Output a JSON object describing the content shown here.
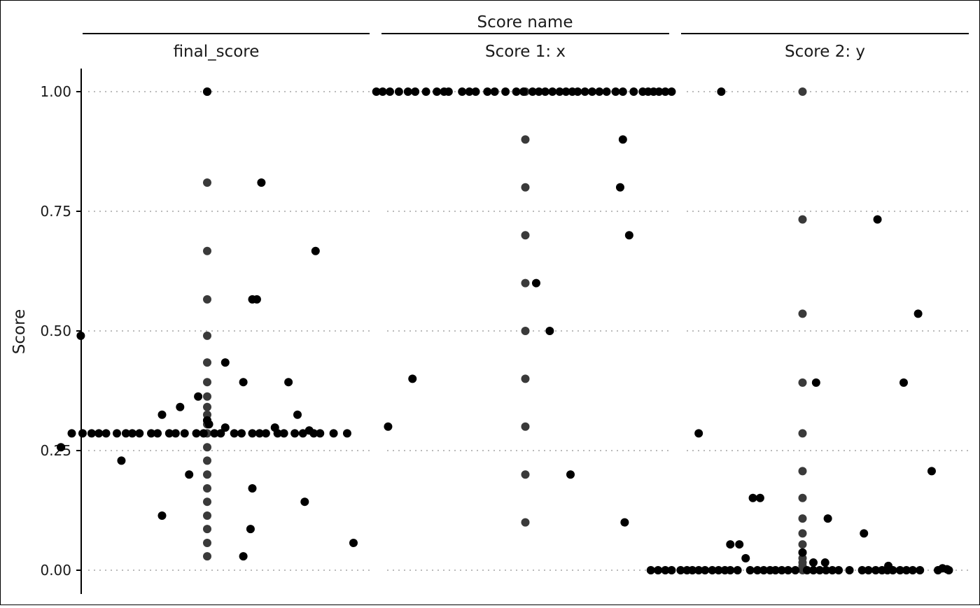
{
  "chart_data": {
    "type": "scatter",
    "title": "",
    "strip_title": "Score name",
    "ylabel": "Score",
    "xlabel": "",
    "ylim": [
      -0.045,
      1.05
    ],
    "y_ticks": [
      {
        "value": 0.0,
        "label": "0.00"
      },
      {
        "value": 0.25,
        "label": "0.25"
      },
      {
        "value": 0.5,
        "label": "0.50"
      },
      {
        "value": 0.75,
        "label": "0.75"
      },
      {
        "value": 1.0,
        "label": "1.00"
      }
    ],
    "grid": "horizontal dotted",
    "colors": {
      "points": "#000000",
      "center_points": "#3a3a3a",
      "grid": "#bbbbbb"
    },
    "facets": [
      {
        "name": "final_score",
        "center_values": [
          1.0,
          0.81,
          0.667,
          0.566,
          0.49,
          0.434,
          0.393,
          0.363,
          0.341,
          0.325,
          0.313,
          0.305,
          0.286,
          0.257,
          0.229,
          0.2,
          0.171,
          0.143,
          0.114,
          0.086,
          0.057,
          0.029
        ],
        "points": [
          {
            "x": 0.0,
            "y": 1.0
          },
          {
            "x": 0.06,
            "y": 0.81
          },
          {
            "x": 0.12,
            "y": 0.667
          },
          {
            "x": 0.05,
            "y": 0.566
          },
          {
            "x": 0.055,
            "y": 0.566
          },
          {
            "x": -0.14,
            "y": 0.49
          },
          {
            "x": 0.02,
            "y": 0.434
          },
          {
            "x": 0.04,
            "y": 0.393
          },
          {
            "x": 0.09,
            "y": 0.393
          },
          {
            "x": -0.01,
            "y": 0.363
          },
          {
            "x": -0.03,
            "y": 0.341
          },
          {
            "x": -0.05,
            "y": 0.325
          },
          {
            "x": 0.1,
            "y": 0.325
          },
          {
            "x": 0.0,
            "y": 0.313
          },
          {
            "x": 0.002,
            "y": 0.305
          },
          {
            "x": 0.02,
            "y": 0.298
          },
          {
            "x": 0.075,
            "y": 0.298
          },
          {
            "x": 0.113,
            "y": 0.292
          },
          {
            "x": -0.15,
            "y": 0.286
          },
          {
            "x": -0.138,
            "y": 0.286
          },
          {
            "x": -0.128,
            "y": 0.286
          },
          {
            "x": -0.12,
            "y": 0.286
          },
          {
            "x": -0.112,
            "y": 0.286
          },
          {
            "x": -0.1,
            "y": 0.286
          },
          {
            "x": -0.09,
            "y": 0.286
          },
          {
            "x": -0.083,
            "y": 0.286
          },
          {
            "x": -0.075,
            "y": 0.286
          },
          {
            "x": -0.062,
            "y": 0.286
          },
          {
            "x": -0.055,
            "y": 0.286
          },
          {
            "x": -0.042,
            "y": 0.286
          },
          {
            "x": -0.035,
            "y": 0.286
          },
          {
            "x": -0.025,
            "y": 0.286
          },
          {
            "x": -0.012,
            "y": 0.286
          },
          {
            "x": -0.004,
            "y": 0.286
          },
          {
            "x": 0.008,
            "y": 0.286
          },
          {
            "x": 0.015,
            "y": 0.286
          },
          {
            "x": 0.03,
            "y": 0.286
          },
          {
            "x": 0.038,
            "y": 0.286
          },
          {
            "x": 0.05,
            "y": 0.286
          },
          {
            "x": 0.058,
            "y": 0.286
          },
          {
            "x": 0.065,
            "y": 0.286
          },
          {
            "x": 0.078,
            "y": 0.286
          },
          {
            "x": 0.085,
            "y": 0.286
          },
          {
            "x": 0.097,
            "y": 0.286
          },
          {
            "x": 0.106,
            "y": 0.286
          },
          {
            "x": 0.118,
            "y": 0.286
          },
          {
            "x": 0.125,
            "y": 0.286
          },
          {
            "x": 0.14,
            "y": 0.286
          },
          {
            "x": 0.155,
            "y": 0.286
          },
          {
            "x": -0.162,
            "y": 0.257
          },
          {
            "x": -0.095,
            "y": 0.229
          },
          {
            "x": -0.02,
            "y": 0.2
          },
          {
            "x": 0.05,
            "y": 0.171
          },
          {
            "x": 0.108,
            "y": 0.143
          },
          {
            "x": -0.05,
            "y": 0.114
          },
          {
            "x": 0.048,
            "y": 0.086
          },
          {
            "x": 0.162,
            "y": 0.057
          },
          {
            "x": 0.04,
            "y": 0.029
          }
        ]
      },
      {
        "name": "Score 1: x",
        "center_values": [
          1.0,
          0.9,
          0.8,
          0.7,
          0.6,
          0.5,
          0.4,
          0.3,
          0.2,
          0.1
        ],
        "points": [
          {
            "x": -0.165,
            "y": 1.0
          },
          {
            "x": -0.158,
            "y": 1.0
          },
          {
            "x": -0.15,
            "y": 1.0
          },
          {
            "x": -0.14,
            "y": 1.0
          },
          {
            "x": -0.13,
            "y": 1.0
          },
          {
            "x": -0.122,
            "y": 1.0
          },
          {
            "x": -0.11,
            "y": 1.0
          },
          {
            "x": -0.098,
            "y": 1.0
          },
          {
            "x": -0.09,
            "y": 1.0
          },
          {
            "x": -0.085,
            "y": 1.0
          },
          {
            "x": -0.07,
            "y": 1.0
          },
          {
            "x": -0.062,
            "y": 1.0
          },
          {
            "x": -0.055,
            "y": 1.0
          },
          {
            "x": -0.042,
            "y": 1.0
          },
          {
            "x": -0.034,
            "y": 1.0
          },
          {
            "x": -0.022,
            "y": 1.0
          },
          {
            "x": -0.01,
            "y": 1.0
          },
          {
            "x": -0.002,
            "y": 1.0
          },
          {
            "x": 0.008,
            "y": 1.0
          },
          {
            "x": 0.015,
            "y": 1.0
          },
          {
            "x": 0.022,
            "y": 1.0
          },
          {
            "x": 0.03,
            "y": 1.0
          },
          {
            "x": 0.038,
            "y": 1.0
          },
          {
            "x": 0.045,
            "y": 1.0
          },
          {
            "x": 0.052,
            "y": 1.0
          },
          {
            "x": 0.058,
            "y": 1.0
          },
          {
            "x": 0.066,
            "y": 1.0
          },
          {
            "x": 0.074,
            "y": 1.0
          },
          {
            "x": 0.082,
            "y": 1.0
          },
          {
            "x": 0.09,
            "y": 1.0
          },
          {
            "x": 0.1,
            "y": 1.0
          },
          {
            "x": 0.108,
            "y": 1.0
          },
          {
            "x": 0.12,
            "y": 1.0
          },
          {
            "x": 0.13,
            "y": 1.0
          },
          {
            "x": 0.136,
            "y": 1.0
          },
          {
            "x": 0.142,
            "y": 1.0
          },
          {
            "x": 0.148,
            "y": 1.0
          },
          {
            "x": 0.155,
            "y": 1.0
          },
          {
            "x": 0.162,
            "y": 1.0
          },
          {
            "x": 0.108,
            "y": 0.9
          },
          {
            "x": 0.105,
            "y": 0.8
          },
          {
            "x": 0.115,
            "y": 0.7
          },
          {
            "x": 0.012,
            "y": 0.6
          },
          {
            "x": 0.027,
            "y": 0.5
          },
          {
            "x": -0.125,
            "y": 0.4
          },
          {
            "x": -0.152,
            "y": 0.3
          },
          {
            "x": 0.05,
            "y": 0.2
          },
          {
            "x": 0.11,
            "y": 0.1
          }
        ]
      },
      {
        "name": "Score 2: y",
        "center_values": [
          1.0,
          0.733,
          0.536,
          0.392,
          0.286,
          0.207,
          0.151,
          0.108,
          0.077,
          0.054,
          0.037,
          0.025,
          0.016,
          0.009,
          0.004,
          0.0
        ],
        "points": [
          {
            "x": -0.09,
            "y": 1.0
          },
          {
            "x": 0.083,
            "y": 0.733
          },
          {
            "x": 0.128,
            "y": 0.536
          },
          {
            "x": 0.015,
            "y": 0.392
          },
          {
            "x": 0.112,
            "y": 0.392
          },
          {
            "x": -0.115,
            "y": 0.286
          },
          {
            "x": 0.143,
            "y": 0.207
          },
          {
            "x": -0.055,
            "y": 0.151
          },
          {
            "x": -0.047,
            "y": 0.151
          },
          {
            "x": 0.028,
            "y": 0.108
          },
          {
            "x": 0.068,
            "y": 0.077
          },
          {
            "x": -0.08,
            "y": 0.054
          },
          {
            "x": -0.07,
            "y": 0.054
          },
          {
            "x": -0.063,
            "y": 0.025
          },
          {
            "x": 0.0,
            "y": 0.037
          },
          {
            "x": 0.012,
            "y": 0.016
          },
          {
            "x": 0.025,
            "y": 0.016
          },
          {
            "x": 0.095,
            "y": 0.009
          },
          {
            "x": 0.155,
            "y": 0.004
          },
          {
            "x": 0.16,
            "y": 0.002
          },
          {
            "x": -0.168,
            "y": 0.0
          },
          {
            "x": -0.16,
            "y": 0.0
          },
          {
            "x": -0.152,
            "y": 0.0
          },
          {
            "x": -0.145,
            "y": 0.0
          },
          {
            "x": -0.135,
            "y": 0.0
          },
          {
            "x": -0.128,
            "y": 0.0
          },
          {
            "x": -0.122,
            "y": 0.0
          },
          {
            "x": -0.115,
            "y": 0.0
          },
          {
            "x": -0.108,
            "y": 0.0
          },
          {
            "x": -0.1,
            "y": 0.0
          },
          {
            "x": -0.093,
            "y": 0.0
          },
          {
            "x": -0.086,
            "y": 0.0
          },
          {
            "x": -0.08,
            "y": 0.0
          },
          {
            "x": -0.072,
            "y": 0.0
          },
          {
            "x": -0.058,
            "y": 0.0
          },
          {
            "x": -0.05,
            "y": 0.0
          },
          {
            "x": -0.043,
            "y": 0.0
          },
          {
            "x": -0.036,
            "y": 0.0
          },
          {
            "x": -0.03,
            "y": 0.0
          },
          {
            "x": -0.023,
            "y": 0.0
          },
          {
            "x": -0.016,
            "y": 0.0
          },
          {
            "x": -0.008,
            "y": 0.0
          },
          {
            "x": 0.005,
            "y": 0.0
          },
          {
            "x": 0.012,
            "y": 0.0
          },
          {
            "x": 0.019,
            "y": 0.0
          },
          {
            "x": 0.026,
            "y": 0.0
          },
          {
            "x": 0.033,
            "y": 0.0
          },
          {
            "x": 0.04,
            "y": 0.0
          },
          {
            "x": 0.052,
            "y": 0.0
          },
          {
            "x": 0.066,
            "y": 0.0
          },
          {
            "x": 0.073,
            "y": 0.0
          },
          {
            "x": 0.081,
            "y": 0.0
          },
          {
            "x": 0.088,
            "y": 0.0
          },
          {
            "x": 0.094,
            "y": 0.0
          },
          {
            "x": 0.1,
            "y": 0.0
          },
          {
            "x": 0.108,
            "y": 0.0
          },
          {
            "x": 0.115,
            "y": 0.0
          },
          {
            "x": 0.122,
            "y": 0.0
          },
          {
            "x": 0.13,
            "y": 0.0
          },
          {
            "x": 0.15,
            "y": 0.0
          },
          {
            "x": 0.162,
            "y": 0.0
          }
        ]
      }
    ]
  }
}
